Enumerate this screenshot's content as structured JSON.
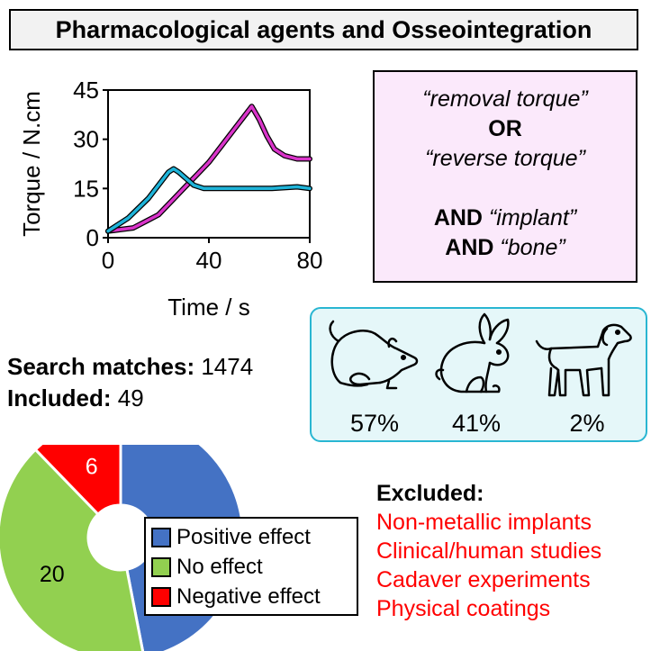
{
  "title": "Pharmacological agents and Osseointegration",
  "chart_data": {
    "type": "line",
    "xlabel": "Time / s",
    "ylabel": "Torque / N.cm",
    "xlim": [
      0,
      80
    ],
    "ylim": [
      0,
      45
    ],
    "x_ticks": [
      0,
      40,
      80
    ],
    "y_ticks": [
      0,
      15,
      30,
      45
    ],
    "series": [
      {
        "name": "magenta",
        "color": "#d934c9",
        "points": [
          [
            0,
            2
          ],
          [
            5,
            2.5
          ],
          [
            10,
            3
          ],
          [
            15,
            5
          ],
          [
            20,
            7
          ],
          [
            25,
            11
          ],
          [
            30,
            15
          ],
          [
            35,
            19
          ],
          [
            40,
            23
          ],
          [
            45,
            28
          ],
          [
            50,
            33
          ],
          [
            55,
            38
          ],
          [
            57,
            40
          ],
          [
            60,
            36
          ],
          [
            63,
            31
          ],
          [
            66,
            27
          ],
          [
            70,
            25
          ],
          [
            75,
            24
          ],
          [
            80,
            24
          ]
        ]
      },
      {
        "name": "cyan",
        "color": "#1fb4d9",
        "points": [
          [
            0,
            2
          ],
          [
            4,
            4
          ],
          [
            8,
            6
          ],
          [
            12,
            9
          ],
          [
            16,
            12
          ],
          [
            20,
            16
          ],
          [
            24,
            20
          ],
          [
            26,
            21
          ],
          [
            28,
            20
          ],
          [
            31,
            18
          ],
          [
            34,
            16
          ],
          [
            38,
            15
          ],
          [
            45,
            15
          ],
          [
            55,
            15
          ],
          [
            65,
            15
          ],
          [
            75,
            15.5
          ],
          [
            80,
            15
          ]
        ]
      }
    ]
  },
  "query": {
    "line1": "“removal torque”",
    "or": "OR",
    "line2": "“reverse torque”",
    "and1_kw": "AND",
    "and1_term": "“implant”",
    "and2_kw": "AND",
    "and2_term": "“bone”"
  },
  "animals": {
    "rat_pct": "57%",
    "rabbit_pct": "41%",
    "dog_pct": "2%"
  },
  "search": {
    "matches_label": "Search matches:",
    "matches_value": "1474",
    "included_label": "Included:",
    "included_value": "49"
  },
  "pie": {
    "type": "pie",
    "slices": [
      {
        "label": "Positive effect",
        "value": 23,
        "color": "#4472c4"
      },
      {
        "label": "No effect",
        "value": 20,
        "color": "#92d050"
      },
      {
        "label": "Negative effect",
        "value": 6,
        "color": "#ff0000"
      }
    ]
  },
  "legend": {
    "positive": "Positive effect",
    "none": "No effect",
    "negative": "Negative effect"
  },
  "excluded": {
    "heading": "Excluded:",
    "items": [
      "Non-metallic implants",
      "Clinical/human studies",
      "Cadaver experiments",
      "Physical coatings"
    ]
  }
}
